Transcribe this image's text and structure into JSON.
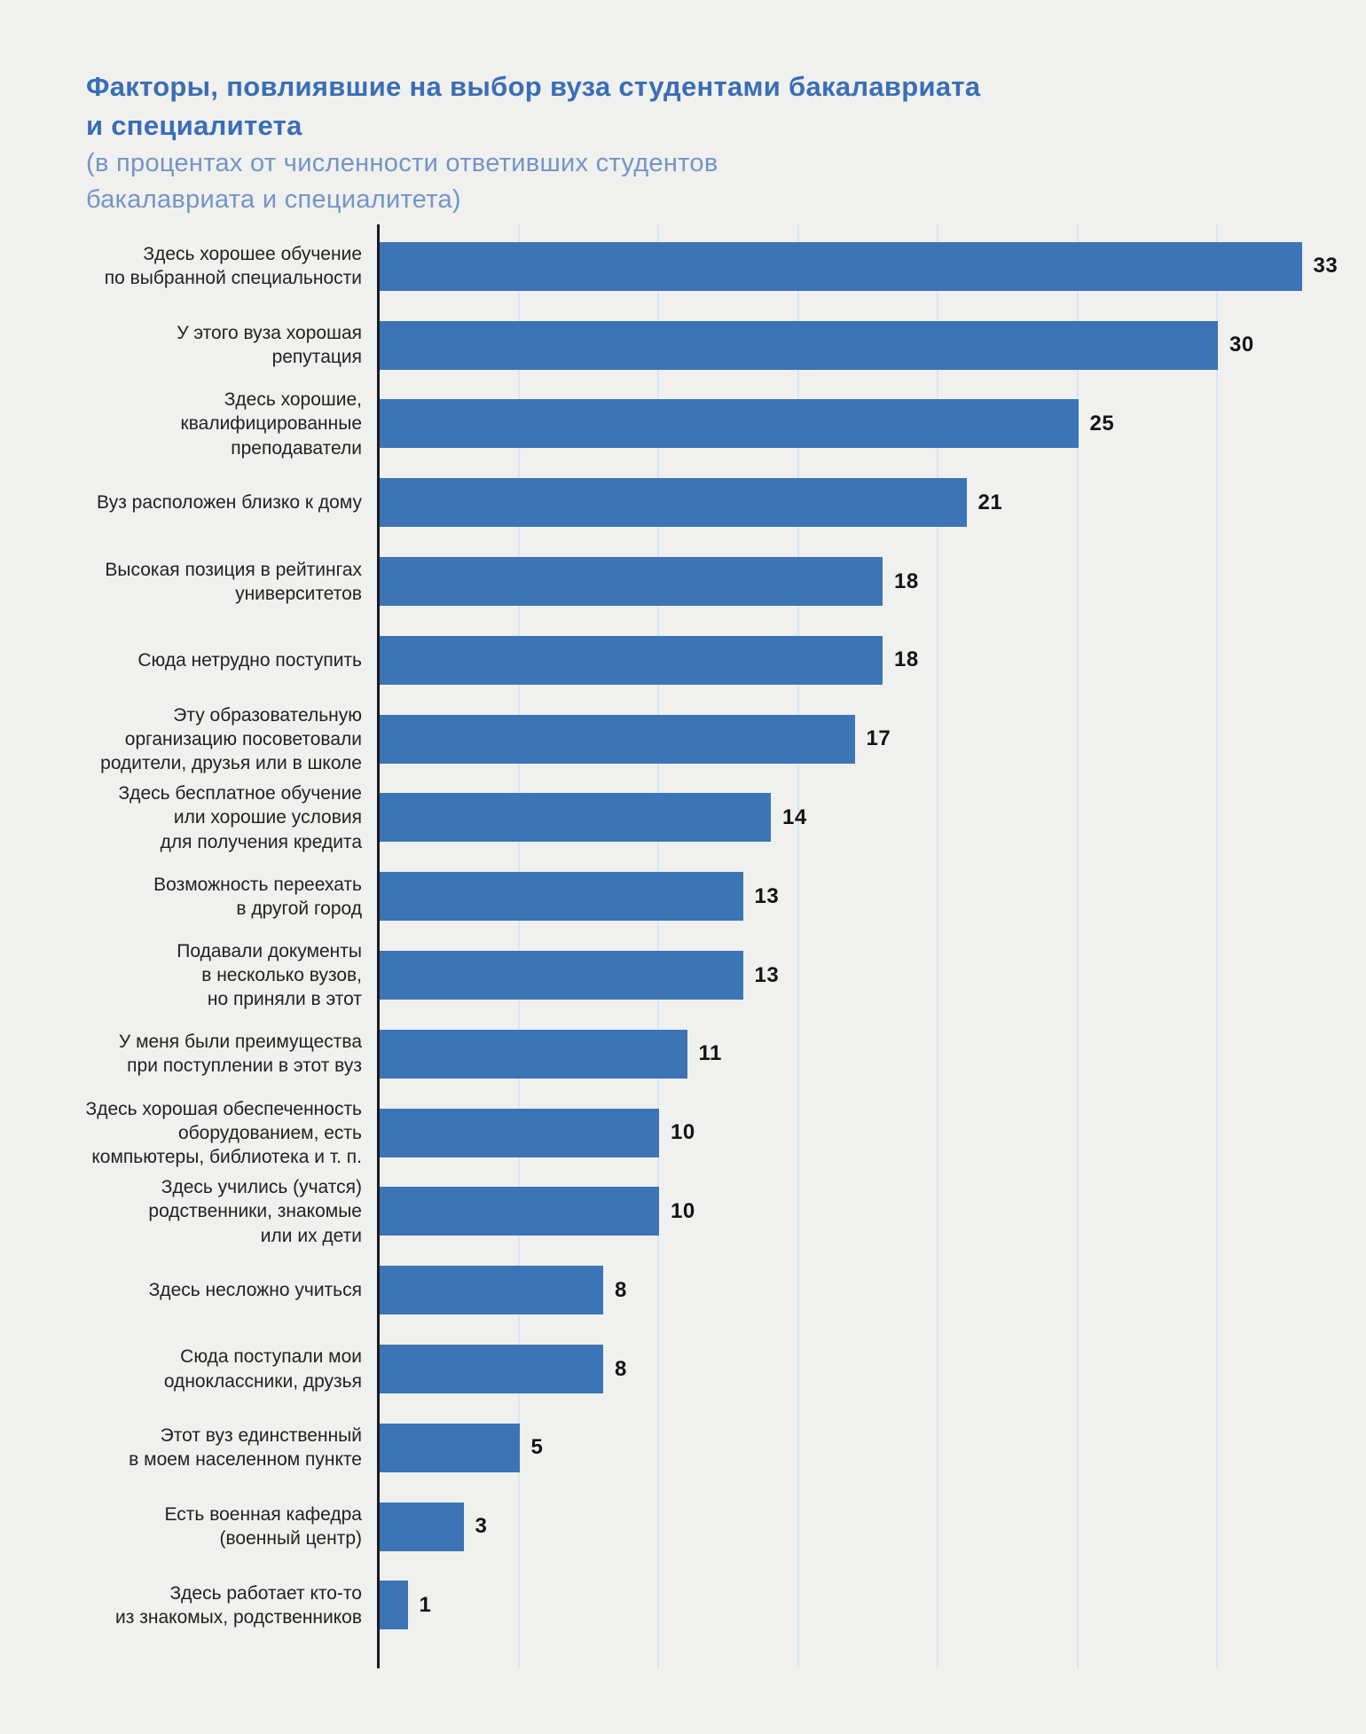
{
  "page": {
    "background_color": "#f0f0ee",
    "accent_color": "#3d74b5"
  },
  "header": {
    "title_lines": [
      "Факторы, повлиявшие на выбор вуза студентами бакалавриата",
      "и специалитета"
    ],
    "subtitle_lines": [
      "(в процентах от численности ответивших студентов",
      "бакалавриата и специалитета)"
    ]
  },
  "chart_data": {
    "type": "bar",
    "orientation": "horizontal",
    "title": "Факторы, повлиявшие на выбор вуза студентами бакалавриата и специалитета",
    "subtitle": "(в процентах от численности ответивших студентов бакалавриата и специалитета)",
    "unit": "percent",
    "xlim": [
      0,
      33
    ],
    "grid": true,
    "grid_interval": 5,
    "bar_color": "#3d74b5",
    "gridline_color": "#d8e6f3",
    "axis_color": "#1c1c1e",
    "categories": [
      "Здесь хорошее обучение\nпо выбранной специальности",
      "У этого вуза хорошая\nрепутация",
      "Здесь хорошие,\nквалифицированные\nпреподаватели",
      "Вуз расположен близко к дому",
      "Высокая позиция в рейтингах\nуниверситетов",
      "Сюда нетрудно поступить",
      "Эту образовательную\nорганизацию посоветовали\nродители, друзья или в школе",
      "Здесь бесплатное обучение\nили хорошие условия\nдля получения кредита",
      "Возможность переехать\nв другой город",
      "Подавали документы\nв несколько вузов,\nно приняли в этот",
      "У меня были преимущества\nпри поступлении в этот вуз",
      "Здесь хорошая обеспеченность\nоборудованием, есть\nкомпьютеры, библиотека и т. п.",
      "Здесь учились (учатся)\nродственники, знакомые\nили их дети",
      "Здесь несложно учиться",
      "Сюда поступали мои\nодноклассники, друзья",
      "Этот вуз единственный\nв моем населенном пункте",
      "Есть военная кафедра\n(военный центр)",
      "Здесь работает кто-то\nиз знакомых, родственников"
    ],
    "values": [
      33,
      30,
      25,
      21,
      18,
      18,
      17,
      14,
      13,
      13,
      11,
      10,
      10,
      8,
      8,
      5,
      3,
      1
    ]
  }
}
